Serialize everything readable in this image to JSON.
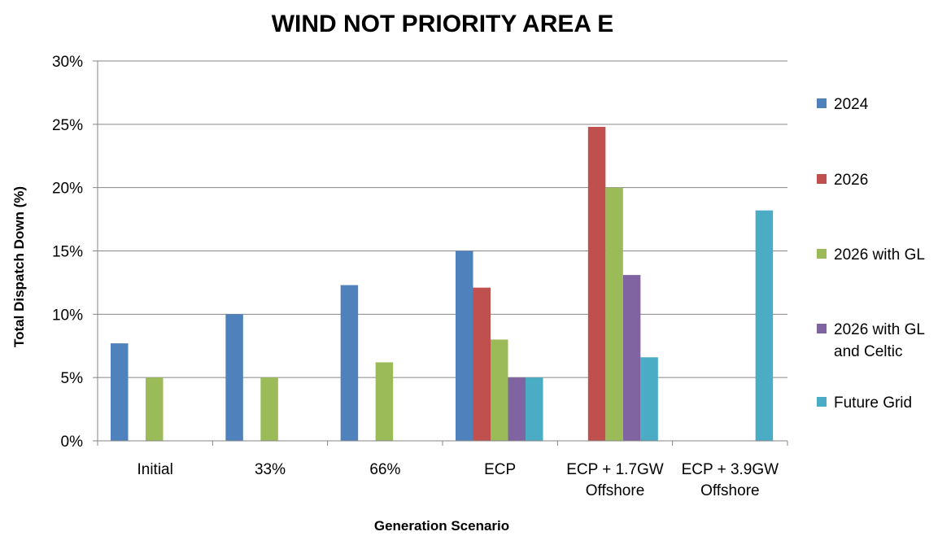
{
  "chart_data": {
    "type": "bar",
    "title": "WIND NOT PRIORITY AREA E",
    "xlabel": "Generation Scenario",
    "ylabel": "Total Dispatch Down (%)",
    "ylim": [
      0,
      30
    ],
    "yticks": [
      "0%",
      "5%",
      "10%",
      "15%",
      "20%",
      "25%",
      "30%"
    ],
    "grid": true,
    "legend_position": "right",
    "categories": [
      [
        "Initial"
      ],
      [
        "33%"
      ],
      [
        "66%"
      ],
      [
        "ECP"
      ],
      [
        "ECP + 1.7GW",
        "Offshore"
      ],
      [
        "ECP + 3.9GW",
        "Offshore"
      ]
    ],
    "series": [
      {
        "name": "2024",
        "color": "#4F81BD",
        "values": [
          7.7,
          10.0,
          12.3,
          15.0,
          null,
          null
        ]
      },
      {
        "name": "2026",
        "color": "#C0504D",
        "values": [
          null,
          null,
          null,
          12.1,
          24.8,
          null
        ]
      },
      {
        "name": "2026 with GL",
        "color": "#9BBB59",
        "values": [
          5.0,
          5.0,
          6.2,
          8.0,
          20.0,
          null
        ]
      },
      {
        "name": [
          "2026 with GL",
          "and Celtic"
        ],
        "color": "#8064A2",
        "values": [
          null,
          null,
          null,
          5.0,
          13.1,
          null
        ]
      },
      {
        "name": "Future Grid",
        "color": "#4BACC6",
        "values": [
          null,
          null,
          null,
          5.0,
          6.6,
          18.2
        ]
      }
    ]
  }
}
